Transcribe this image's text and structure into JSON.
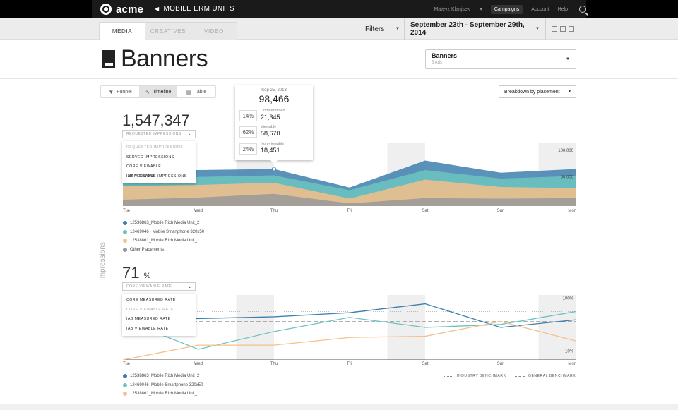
{
  "app": {
    "logo": "acme",
    "breadcrumb": "MOBILE ERM UNITS"
  },
  "topnav": {
    "user": "Matevz Klanjsek",
    "items": [
      "Campaigns",
      "Account",
      "Help"
    ],
    "active": "Campaigns"
  },
  "tabs": [
    "MEDIA",
    "CREATIVES",
    "VIDEO"
  ],
  "active_tab": "MEDIA",
  "filters": {
    "label": "Filters",
    "date_range": "September 23th - September 29th, 2014"
  },
  "page": {
    "title": "Banners"
  },
  "selector": {
    "title": "Banners",
    "subtitle": "5 Ads"
  },
  "view_tabs": [
    "Funnel",
    "Timeline",
    "Table"
  ],
  "active_view": "Timeline",
  "breakdown": "Breakdown by placement",
  "side_label": "Impressions",
  "impressions": {
    "value": "1,547,347",
    "metric": "REQUESTED IMPRESSIONS",
    "options": [
      "REQUESTED IMPRESSIONS",
      "SERVED IMPRESSIONS",
      "CORE VIEWABLE IMPRESSIONS",
      "IAB VIEWABLE IMPRESSIONS"
    ]
  },
  "tooltip": {
    "date": "Sep 25, 2013",
    "total": "98,466",
    "rows": [
      {
        "pct": "14%",
        "label": "Undetermined",
        "value": "21,345"
      },
      {
        "pct": "62%",
        "label": "Viewable",
        "value": "58,670"
      },
      {
        "pct": "24%",
        "label": "Non-viewable",
        "value": "18,451"
      }
    ]
  },
  "rate": {
    "value": "71",
    "unit": "%",
    "metric": "CORE VIEWABLE RATE",
    "options": [
      "CORE MEASURED RATE",
      "CORE VIEWABLE RATE",
      "IAB MEASURED RATE",
      "IAB VIEWABLE RATE"
    ]
  },
  "legend1": [
    {
      "name": "12538863_Mobile Rich Media Unit_2",
      "color": "#3d7fae"
    },
    {
      "name": "12469046_ Mobile Smartphone 320x50",
      "color": "#6cc4c0"
    },
    {
      "name": "12538861_Mobile Rich Media Unit_1",
      "color": "#f5c08a"
    },
    {
      "name": "Other Placements",
      "color": "#999999"
    }
  ],
  "legend2": [
    {
      "name": "12538863_Mobile Rich Media Unit_2",
      "color": "#3d7fae"
    },
    {
      "name": "12469046_Mobile Smartphone 320x50",
      "color": "#6cc4c0"
    },
    {
      "name": "12538861_Mobile Rich Media Unit_1",
      "color": "#f5c08a"
    }
  ],
  "benchmarks": {
    "industry": "INDUSTRY BENCHMARK",
    "general": "GENERAL BENCHMARK"
  },
  "chart_data": [
    {
      "type": "area",
      "categories": [
        "Tue",
        "Wed",
        "Thu",
        "Fri",
        "Sat",
        "Sun",
        "Mon"
      ],
      "ylim": [
        0,
        120000
      ],
      "y_ticks": [
        "100,000",
        "50,000"
      ],
      "y_tick_values": [
        100000,
        50000
      ],
      "stacked": false,
      "series": [
        {
          "name": "12538863_Mobile Rich Media Unit_2",
          "color": "#3d7fae",
          "values": [
            67000,
            68000,
            70000,
            35000,
            86000,
            63000,
            70000
          ]
        },
        {
          "name": "12469046_ Mobile Smartphone 320x50",
          "color": "#6cc4c0",
          "values": [
            50000,
            55000,
            58000,
            30000,
            68000,
            52000,
            57000
          ]
        },
        {
          "name": "12538861_Mobile Rich Media Unit_1",
          "color": "#f5c08a",
          "values": [
            38000,
            40000,
            44000,
            14000,
            50000,
            36000,
            34000
          ]
        },
        {
          "name": "Other Placements",
          "color": "#999999",
          "values": [
            12000,
            16000,
            23000,
            5000,
            15000,
            14000,
            15000
          ]
        }
      ],
      "shaded_categories": [
        "Wed",
        "Fri",
        "Sun"
      ]
    },
    {
      "type": "line",
      "categories": [
        "Tue",
        "Wed",
        "Thu",
        "Fri",
        "Sat",
        "Sun",
        "Mon"
      ],
      "ylim": [
        0,
        110
      ],
      "y_ticks": [
        "100%",
        "10%"
      ],
      "y_tick_values": [
        100,
        10
      ],
      "series": [
        {
          "name": "12538863_Mobile Rich Media Unit_2",
          "color": "#3d7fae",
          "values": [
            72,
            70,
            73,
            80,
            95,
            55,
            68
          ]
        },
        {
          "name": "12469046_Mobile Smartphone 320x50",
          "color": "#6cc4c0",
          "values": [
            68,
            18,
            48,
            72,
            55,
            60,
            82
          ]
        },
        {
          "name": "12538861_Mobile Rich Media Unit_1",
          "color": "#f5c08a",
          "values": [
            0,
            25,
            25,
            38,
            40,
            65,
            32
          ]
        }
      ],
      "benchmarks": {
        "industry": 82,
        "general": 65
      },
      "shaded_categories": [
        "Wed",
        "Fri",
        "Sun"
      ]
    }
  ]
}
